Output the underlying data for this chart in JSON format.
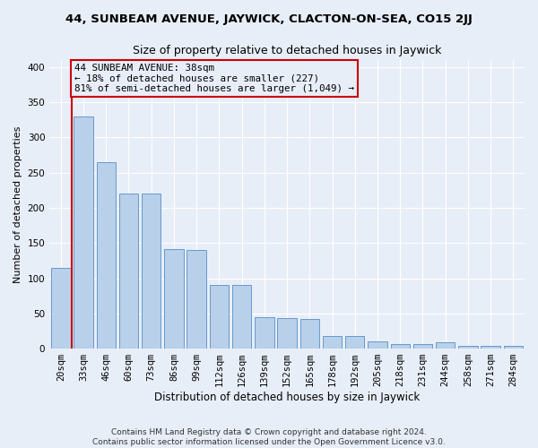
{
  "title": "44, SUNBEAM AVENUE, JAYWICK, CLACTON-ON-SEA, CO15 2JJ",
  "subtitle": "Size of property relative to detached houses in Jaywick",
  "xlabel": "Distribution of detached houses by size in Jaywick",
  "ylabel": "Number of detached properties",
  "categories": [
    "20sqm",
    "33sqm",
    "46sqm",
    "60sqm",
    "73sqm",
    "86sqm",
    "99sqm",
    "112sqm",
    "126sqm",
    "139sqm",
    "152sqm",
    "165sqm",
    "178sqm",
    "192sqm",
    "205sqm",
    "218sqm",
    "231sqm",
    "244sqm",
    "258sqm",
    "271sqm",
    "284sqm"
  ],
  "bar_values": [
    115,
    330,
    265,
    220,
    220,
    142,
    140,
    90,
    90,
    45,
    44,
    42,
    18,
    18,
    10,
    6,
    6,
    9,
    4,
    4,
    4
  ],
  "bar_color": "#b8d0ea",
  "bar_edge_color": "#6699cc",
  "property_line_color": "#cc0000",
  "annotation_line1": "44 SUNBEAM AVENUE: 38sqm",
  "annotation_line2": "← 18% of detached houses are smaller (227)",
  "annotation_line3": "81% of semi-detached houses are larger (1,049) →",
  "annotation_box_edge_color": "#cc0000",
  "background_color": "#e8eef8",
  "grid_color": "#ffffff",
  "footer": "Contains HM Land Registry data © Crown copyright and database right 2024.\nContains public sector information licensed under the Open Government Licence v3.0.",
  "ylim": [
    0,
    410
  ],
  "yticks": [
    0,
    50,
    100,
    150,
    200,
    250,
    300,
    350,
    400
  ],
  "title_fontsize": 9.5,
  "subtitle_fontsize": 9,
  "ylabel_fontsize": 8,
  "xlabel_fontsize": 8.5,
  "tick_fontsize": 7.5,
  "footer_fontsize": 6.5
}
